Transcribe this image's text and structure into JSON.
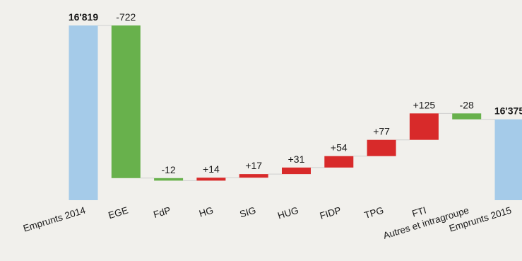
{
  "chart_data": {
    "type": "waterfall",
    "title": "",
    "xlabel": "",
    "ylabel": "",
    "categories": [
      "Emprunts 2014",
      "EGE",
      "FdP",
      "HG",
      "SIG",
      "HUG",
      "FIDP",
      "TPG",
      "FTI",
      "Autres et intragroupe",
      "Emprunts 2015"
    ],
    "kinds": [
      "total",
      "delta",
      "delta",
      "delta",
      "delta",
      "delta",
      "delta",
      "delta",
      "delta",
      "delta",
      "total"
    ],
    "values": [
      16819,
      -722,
      -12,
      14,
      17,
      31,
      54,
      77,
      125,
      -28,
      16375
    ],
    "value_labels": [
      "16'819",
      "-722",
      "-12",
      "+14",
      "+17",
      "+31",
      "+54",
      "+77",
      "+125",
      "-28",
      "16'375"
    ],
    "colors": {
      "total": "#a5cbe9",
      "decrease": "#68b14c",
      "increase": "#d82a2a",
      "connector": "#cfcfcf"
    },
    "grid": false,
    "legend": "none"
  }
}
